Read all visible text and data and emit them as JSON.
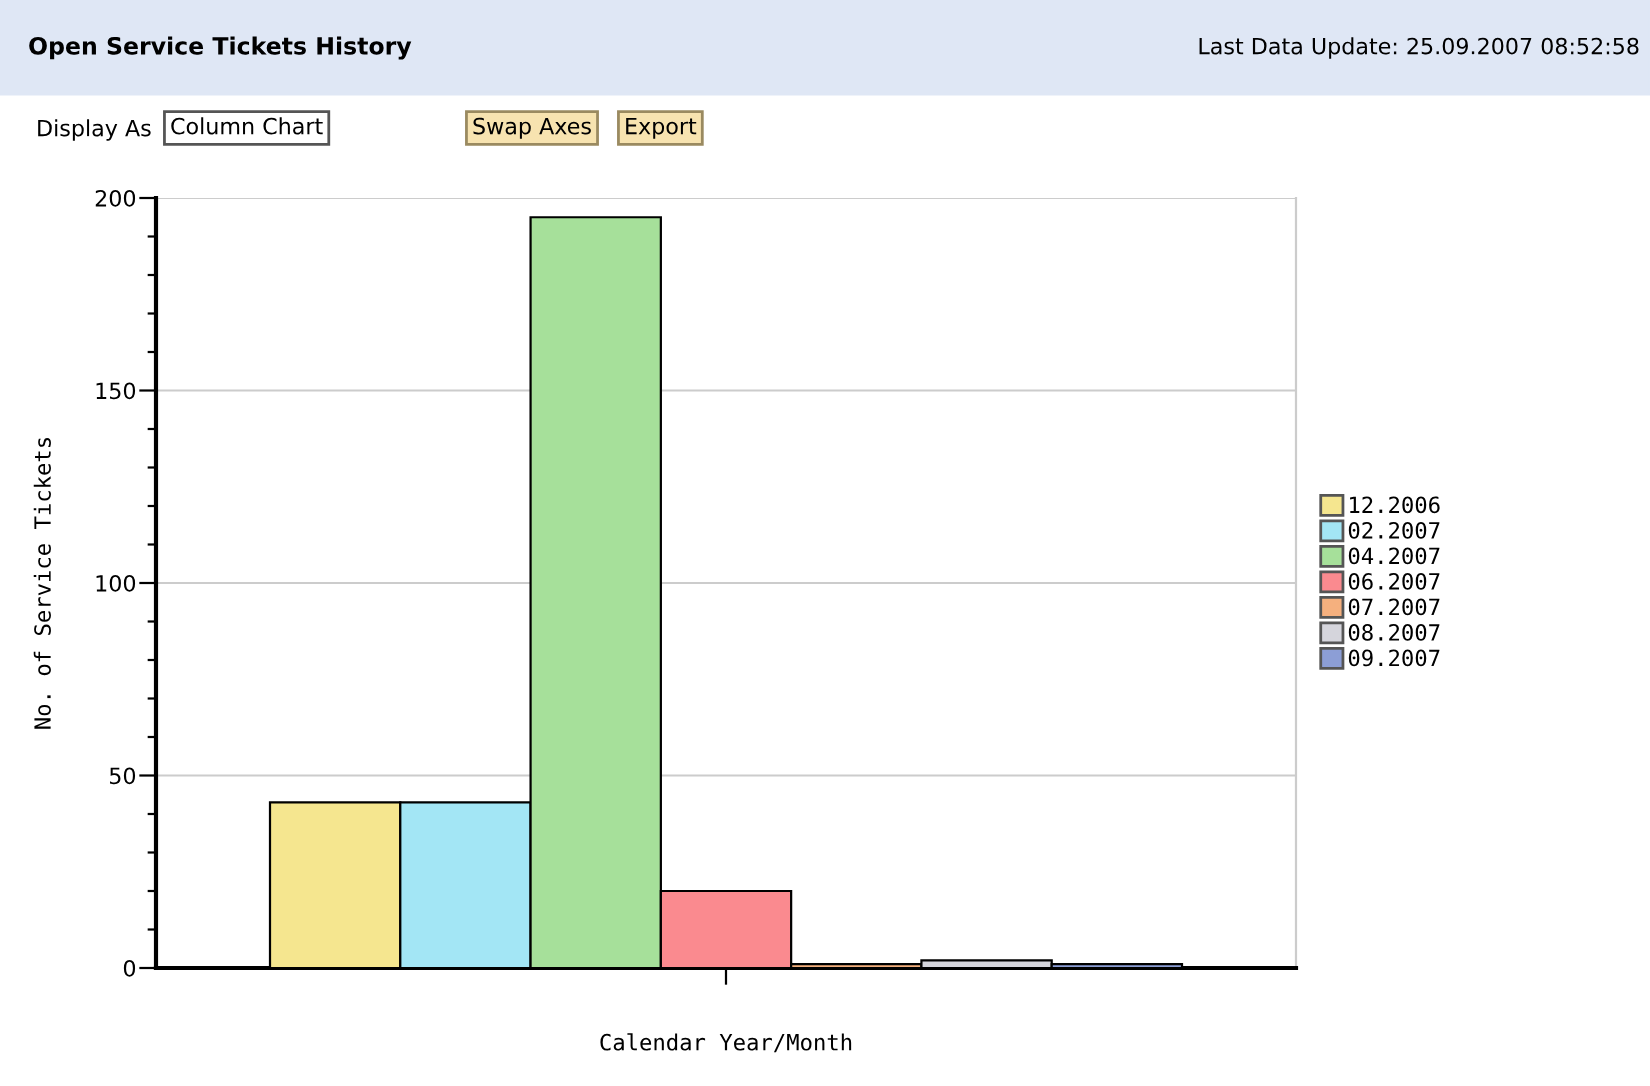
{
  "chart_data": {
    "type": "bar",
    "title": "Open Service Tickets History",
    "annotations": [
      "Last Data Update: 25.09.2007 08:52:58",
      "Display As",
      "Column Chart",
      "Swap Axes",
      "Export"
    ],
    "categories": [
      null
    ],
    "series": [
      {
        "name": "12.2006",
        "color": "#f5e68f",
        "values": [
          43
        ]
      },
      {
        "name": "02.2007",
        "color": "#a3e6f5",
        "values": [
          43
        ]
      },
      {
        "name": "04.2007",
        "color": "#a6e09a",
        "values": [
          195
        ]
      },
      {
        "name": "06.2007",
        "color": "#fa8a8f",
        "values": [
          20
        ]
      },
      {
        "name": "07.2007",
        "color": "#f5b07e",
        "values": [
          1
        ]
      },
      {
        "name": "08.2007",
        "color": "#d5d5dc",
        "values": [
          2
        ]
      },
      {
        "name": "09.2007",
        "color": "#8c9ed6",
        "values": [
          1
        ]
      }
    ],
    "xlabel": "Calendar Year/Month",
    "ylabel": "No. of Service Tickets",
    "ylim": [
      0,
      200
    ],
    "yticks": [
      0,
      {
        "value": 10,
        "label": null
      },
      {
        "value": 20,
        "label": null
      },
      {
        "value": 30,
        "label": null
      },
      {
        "value": 40,
        "label": null
      },
      50,
      {
        "value": 60,
        "label": null
      },
      {
        "value": 70,
        "label": null
      },
      {
        "value": 80,
        "label": null
      },
      {
        "value": 90,
        "label": null
      },
      100,
      {
        "value": 110,
        "label": null
      },
      {
        "value": 120,
        "label": null
      },
      {
        "value": 130,
        "label": null
      },
      {
        "value": 140,
        "label": null
      },
      150,
      {
        "value": 160,
        "label": null
      },
      {
        "value": 170,
        "label": null
      },
      {
        "value": 180,
        "label": null
      },
      {
        "value": 190,
        "label": null
      },
      200
    ],
    "grid": "y",
    "legend": "right"
  }
}
